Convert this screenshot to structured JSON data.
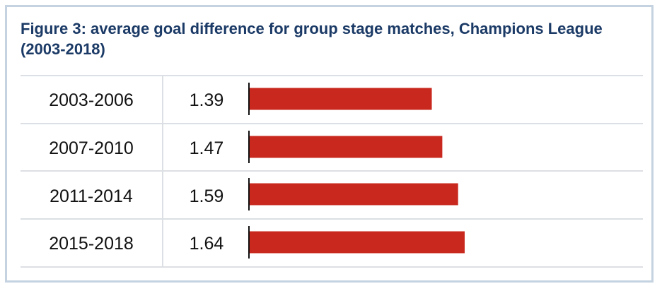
{
  "chart_data": {
    "type": "bar",
    "orientation": "horizontal",
    "title": "Figure 3: average goal difference for group stage matches, Champions League (2003-2018)",
    "categories": [
      "2003-2006",
      "2007-2010",
      "2011-2014",
      "2015-2018"
    ],
    "values": [
      1.39,
      1.47,
      1.59,
      1.64
    ],
    "value_labels": [
      "1.39",
      "1.47",
      "1.59",
      "1.64"
    ],
    "xlim": [
      0,
      1.64
    ],
    "grid": false,
    "bar_color": "#c8281e"
  }
}
